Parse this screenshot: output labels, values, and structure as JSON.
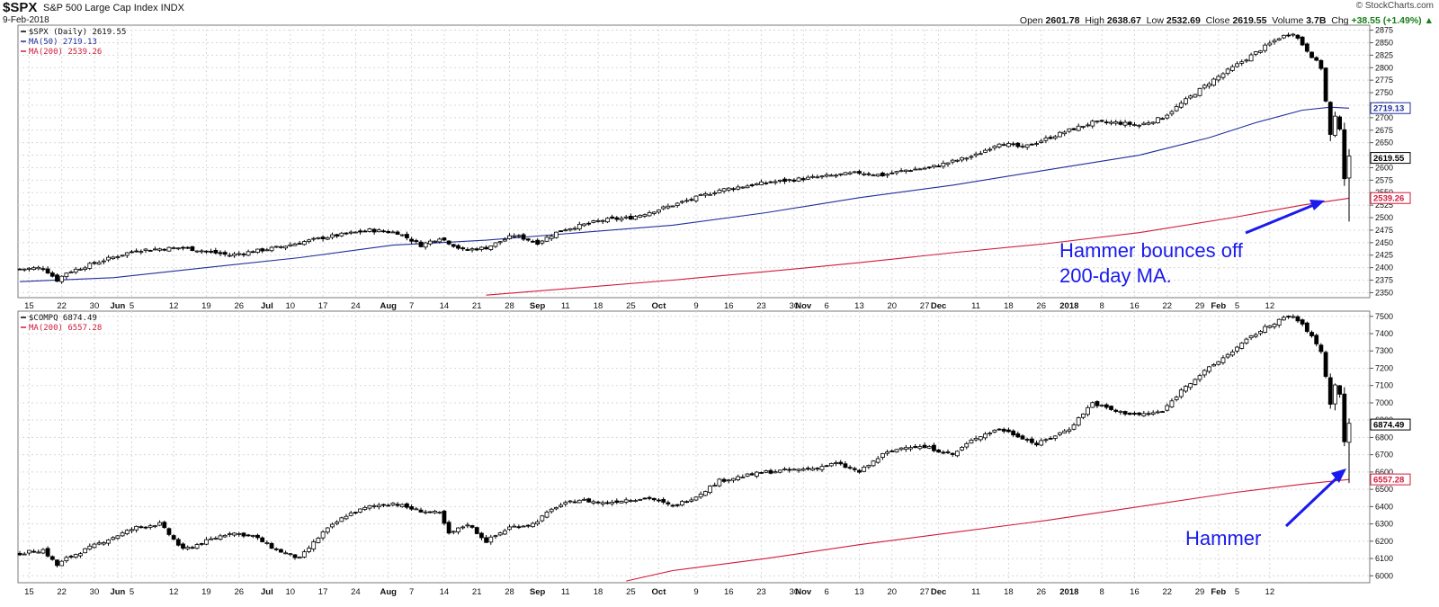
{
  "header": {
    "symbol": "$SPX",
    "name": "S&P 500 Large Cap Index  INDX",
    "date": "9-Feb-2018",
    "watermark": "© StockCharts.com",
    "open_label": "Open",
    "open": "2601.78",
    "high_label": "High",
    "high": "2638.67",
    "low_label": "Low",
    "low": "2532.69",
    "close_label": "Close",
    "close": "2619.55",
    "volume_label": "Volume",
    "volume": "3.7B",
    "chg_label": "Chg",
    "chg": "+38.55 (+1.49%)",
    "chg_arrow": "▲"
  },
  "chart_data": [
    {
      "type": "candlestick",
      "legend": [
        "$SPX (Daily) 2619.55",
        "MA(50) 2719.13",
        "MA(200) 2539.26"
      ],
      "legend_colors": [
        "#000000",
        "#1f2f9a",
        "#d11a3a"
      ],
      "y_ticks": [
        2350,
        2375,
        2400,
        2425,
        2450,
        2475,
        2500,
        2525,
        2550,
        2575,
        2600,
        2625,
        2650,
        2675,
        2700,
        2725,
        2750,
        2775,
        2800,
        2825,
        2850,
        2875
      ],
      "ylim": [
        2340,
        2885
      ],
      "price_labels": [
        {
          "text": "2719.13",
          "value": 2719.13,
          "color": "#1f2f9a"
        },
        {
          "text": "2619.55",
          "value": 2619.55,
          "color": "#000000"
        },
        {
          "text": "2539.26",
          "value": 2539.26,
          "color": "#d11a3a"
        }
      ],
      "annotation": {
        "lines": [
          "Hammer bounces off",
          "200-day MA."
        ],
        "color": "#1a1aee"
      },
      "anchors": [
        {
          "d": 0,
          "v": 2397
        },
        {
          "d": 5,
          "v": 2400
        },
        {
          "d": 8,
          "v": 2375
        },
        {
          "d": 10,
          "v": 2390
        },
        {
          "d": 18,
          "v": 2415
        },
        {
          "d": 25,
          "v": 2435
        },
        {
          "d": 35,
          "v": 2440
        },
        {
          "d": 45,
          "v": 2425
        },
        {
          "d": 55,
          "v": 2440
        },
        {
          "d": 65,
          "v": 2460
        },
        {
          "d": 75,
          "v": 2475
        },
        {
          "d": 81,
          "v": 2470
        },
        {
          "d": 86,
          "v": 2445
        },
        {
          "d": 90,
          "v": 2460
        },
        {
          "d": 95,
          "v": 2435
        },
        {
          "d": 100,
          "v": 2440
        },
        {
          "d": 106,
          "v": 2465
        },
        {
          "d": 111,
          "v": 2450
        },
        {
          "d": 116,
          "v": 2475
        },
        {
          "d": 125,
          "v": 2495
        },
        {
          "d": 131,
          "v": 2500
        },
        {
          "d": 140,
          "v": 2525
        },
        {
          "d": 150,
          "v": 2555
        },
        {
          "d": 160,
          "v": 2570
        },
        {
          "d": 170,
          "v": 2580
        },
        {
          "d": 180,
          "v": 2590
        },
        {
          "d": 185,
          "v": 2585
        },
        {
          "d": 190,
          "v": 2595
        },
        {
          "d": 195,
          "v": 2600
        },
        {
          "d": 205,
          "v": 2625
        },
        {
          "d": 210,
          "v": 2650
        },
        {
          "d": 215,
          "v": 2640
        },
        {
          "d": 225,
          "v": 2675
        },
        {
          "d": 230,
          "v": 2690
        },
        {
          "d": 235,
          "v": 2690
        },
        {
          "d": 240,
          "v": 2685
        },
        {
          "d": 245,
          "v": 2700
        },
        {
          "d": 250,
          "v": 2735
        },
        {
          "d": 255,
          "v": 2770
        },
        {
          "d": 260,
          "v": 2800
        },
        {
          "d": 265,
          "v": 2830
        },
        {
          "d": 270,
          "v": 2860
        },
        {
          "d": 273,
          "v": 2870
        },
        {
          "d": 276,
          "v": 2835
        },
        {
          "d": 279,
          "v": 2800
        },
        {
          "d": 281,
          "v": 2665
        },
        {
          "d": 282,
          "v": 2700
        },
        {
          "d": 283,
          "v": 2680
        },
        {
          "d": 284,
          "v": 2580
        },
        {
          "d": 285,
          "v": 2620
        }
      ],
      "ma_series": [
        {
          "name": "MA(50)",
          "color": "#1f2f9a",
          "points": [
            [
              0,
              2372
            ],
            [
              20,
              2380
            ],
            [
              40,
              2400
            ],
            [
              60,
              2420
            ],
            [
              80,
              2445
            ],
            [
              100,
              2455
            ],
            [
              120,
              2470
            ],
            [
              140,
              2485
            ],
            [
              160,
              2510
            ],
            [
              180,
              2540
            ],
            [
              200,
              2565
            ],
            [
              220,
              2595
            ],
            [
              240,
              2625
            ],
            [
              255,
              2660
            ],
            [
              265,
              2690
            ],
            [
              275,
              2715
            ],
            [
              281,
              2721
            ],
            [
              285,
              2719
            ]
          ]
        },
        {
          "name": "MA(200)",
          "color": "#d11a3a",
          "points": [
            [
              100,
              2345
            ],
            [
              120,
              2360
            ],
            [
              140,
              2375
            ],
            [
              160,
              2392
            ],
            [
              180,
              2410
            ],
            [
              200,
              2430
            ],
            [
              220,
              2448
            ],
            [
              240,
              2470
            ],
            [
              260,
              2500
            ],
            [
              275,
              2525
            ],
            [
              285,
              2539
            ]
          ]
        }
      ]
    },
    {
      "type": "candlestick",
      "legend": [
        "$COMPQ 6874.49",
        "MA(200) 6557.28"
      ],
      "legend_colors": [
        "#000000",
        "#d11a3a"
      ],
      "y_ticks": [
        6000,
        6100,
        6200,
        6300,
        6400,
        6500,
        6600,
        6700,
        6800,
        6900,
        7000,
        7100,
        7200,
        7300,
        7400,
        7500
      ],
      "ylim": [
        5960,
        7530
      ],
      "price_labels": [
        {
          "text": "6874.49",
          "value": 6874.49,
          "color": "#000000"
        },
        {
          "text": "6557.28",
          "value": 6557.28,
          "color": "#d11a3a"
        }
      ],
      "annotation": {
        "lines": [
          "Hammer"
        ],
        "color": "#1a1aee"
      },
      "anchors": [
        {
          "d": 0,
          "v": 6130
        },
        {
          "d": 5,
          "v": 6150
        },
        {
          "d": 8,
          "v": 6060
        },
        {
          "d": 10,
          "v": 6100
        },
        {
          "d": 18,
          "v": 6200
        },
        {
          "d": 25,
          "v": 6280
        },
        {
          "d": 30,
          "v": 6300
        },
        {
          "d": 35,
          "v": 6150
        },
        {
          "d": 40,
          "v": 6200
        },
        {
          "d": 45,
          "v": 6250
        },
        {
          "d": 50,
          "v": 6230
        },
        {
          "d": 55,
          "v": 6150
        },
        {
          "d": 60,
          "v": 6100
        },
        {
          "d": 65,
          "v": 6250
        },
        {
          "d": 70,
          "v": 6350
        },
        {
          "d": 75,
          "v": 6400
        },
        {
          "d": 80,
          "v": 6420
        },
        {
          "d": 85,
          "v": 6380
        },
        {
          "d": 90,
          "v": 6360
        },
        {
          "d": 92,
          "v": 6240
        },
        {
          "d": 96,
          "v": 6300
        },
        {
          "d": 100,
          "v": 6200
        },
        {
          "d": 105,
          "v": 6280
        },
        {
          "d": 110,
          "v": 6300
        },
        {
          "d": 115,
          "v": 6400
        },
        {
          "d": 120,
          "v": 6440
        },
        {
          "d": 125,
          "v": 6420
        },
        {
          "d": 130,
          "v": 6440
        },
        {
          "d": 135,
          "v": 6450
        },
        {
          "d": 140,
          "v": 6400
        },
        {
          "d": 145,
          "v": 6460
        },
        {
          "d": 150,
          "v": 6550
        },
        {
          "d": 160,
          "v": 6600
        },
        {
          "d": 170,
          "v": 6620
        },
        {
          "d": 175,
          "v": 6650
        },
        {
          "d": 180,
          "v": 6600
        },
        {
          "d": 185,
          "v": 6700
        },
        {
          "d": 190,
          "v": 6750
        },
        {
          "d": 195,
          "v": 6740
        },
        {
          "d": 200,
          "v": 6700
        },
        {
          "d": 205,
          "v": 6800
        },
        {
          "d": 210,
          "v": 6850
        },
        {
          "d": 215,
          "v": 6800
        },
        {
          "d": 218,
          "v": 6760
        },
        {
          "d": 225,
          "v": 6850
        },
        {
          "d": 230,
          "v": 7000
        },
        {
          "d": 235,
          "v": 6950
        },
        {
          "d": 240,
          "v": 6930
        },
        {
          "d": 245,
          "v": 6950
        },
        {
          "d": 250,
          "v": 7100
        },
        {
          "d": 255,
          "v": 7200
        },
        {
          "d": 260,
          "v": 7300
        },
        {
          "d": 265,
          "v": 7400
        },
        {
          "d": 270,
          "v": 7480
        },
        {
          "d": 273,
          "v": 7500
        },
        {
          "d": 276,
          "v": 7420
        },
        {
          "d": 279,
          "v": 7300
        },
        {
          "d": 281,
          "v": 7000
        },
        {
          "d": 282,
          "v": 7100
        },
        {
          "d": 283,
          "v": 7050
        },
        {
          "d": 284,
          "v": 6780
        },
        {
          "d": 285,
          "v": 6874
        }
      ],
      "ma_series": [
        {
          "name": "MA(200)",
          "color": "#d11a3a",
          "points": [
            [
              130,
              5970
            ],
            [
              140,
              6030
            ],
            [
              160,
              6100
            ],
            [
              180,
              6180
            ],
            [
              200,
              6250
            ],
            [
              220,
              6320
            ],
            [
              240,
              6400
            ],
            [
              260,
              6480
            ],
            [
              275,
              6530
            ],
            [
              285,
              6557
            ]
          ]
        }
      ]
    }
  ],
  "x_axis": {
    "labels": [
      {
        "d": 2,
        "text": "15"
      },
      {
        "d": 9,
        "text": "22"
      },
      {
        "d": 16,
        "text": "30"
      },
      {
        "d": 21,
        "text": "Jun"
      },
      {
        "d": 24,
        "text": "5"
      },
      {
        "d": 33,
        "text": "12"
      },
      {
        "d": 40,
        "text": "19"
      },
      {
        "d": 47,
        "text": "26"
      },
      {
        "d": 53,
        "text": "Jul"
      },
      {
        "d": 58,
        "text": "10"
      },
      {
        "d": 65,
        "text": "17"
      },
      {
        "d": 72,
        "text": "24"
      },
      {
        "d": 79,
        "text": "Aug"
      },
      {
        "d": 84,
        "text": "7"
      },
      {
        "d": 91,
        "text": "14"
      },
      {
        "d": 98,
        "text": "21"
      },
      {
        "d": 105,
        "text": "28"
      },
      {
        "d": 111,
        "text": "Sep"
      },
      {
        "d": 117,
        "text": "11"
      },
      {
        "d": 124,
        "text": "18"
      },
      {
        "d": 131,
        "text": "25"
      },
      {
        "d": 137,
        "text": "Oct"
      },
      {
        "d": 145,
        "text": "9"
      },
      {
        "d": 152,
        "text": "16"
      },
      {
        "d": 159,
        "text": "23"
      },
      {
        "d": 166,
        "text": "30"
      },
      {
        "d": 168,
        "text": "Nov"
      },
      {
        "d": 173,
        "text": "6"
      },
      {
        "d": 180,
        "text": "13"
      },
      {
        "d": 187,
        "text": "20"
      },
      {
        "d": 194,
        "text": "27"
      },
      {
        "d": 197,
        "text": "Dec"
      },
      {
        "d": 205,
        "text": "11"
      },
      {
        "d": 212,
        "text": "18"
      },
      {
        "d": 219,
        "text": "26"
      },
      {
        "d": 225,
        "text": "2018"
      },
      {
        "d": 232,
        "text": "8"
      },
      {
        "d": 239,
        "text": "16"
      },
      {
        "d": 246,
        "text": "22"
      },
      {
        "d": 253,
        "text": "29"
      },
      {
        "d": 257,
        "text": "Feb"
      },
      {
        "d": 261,
        "text": "5"
      },
      {
        "d": 268,
        "text": "12"
      }
    ]
  }
}
